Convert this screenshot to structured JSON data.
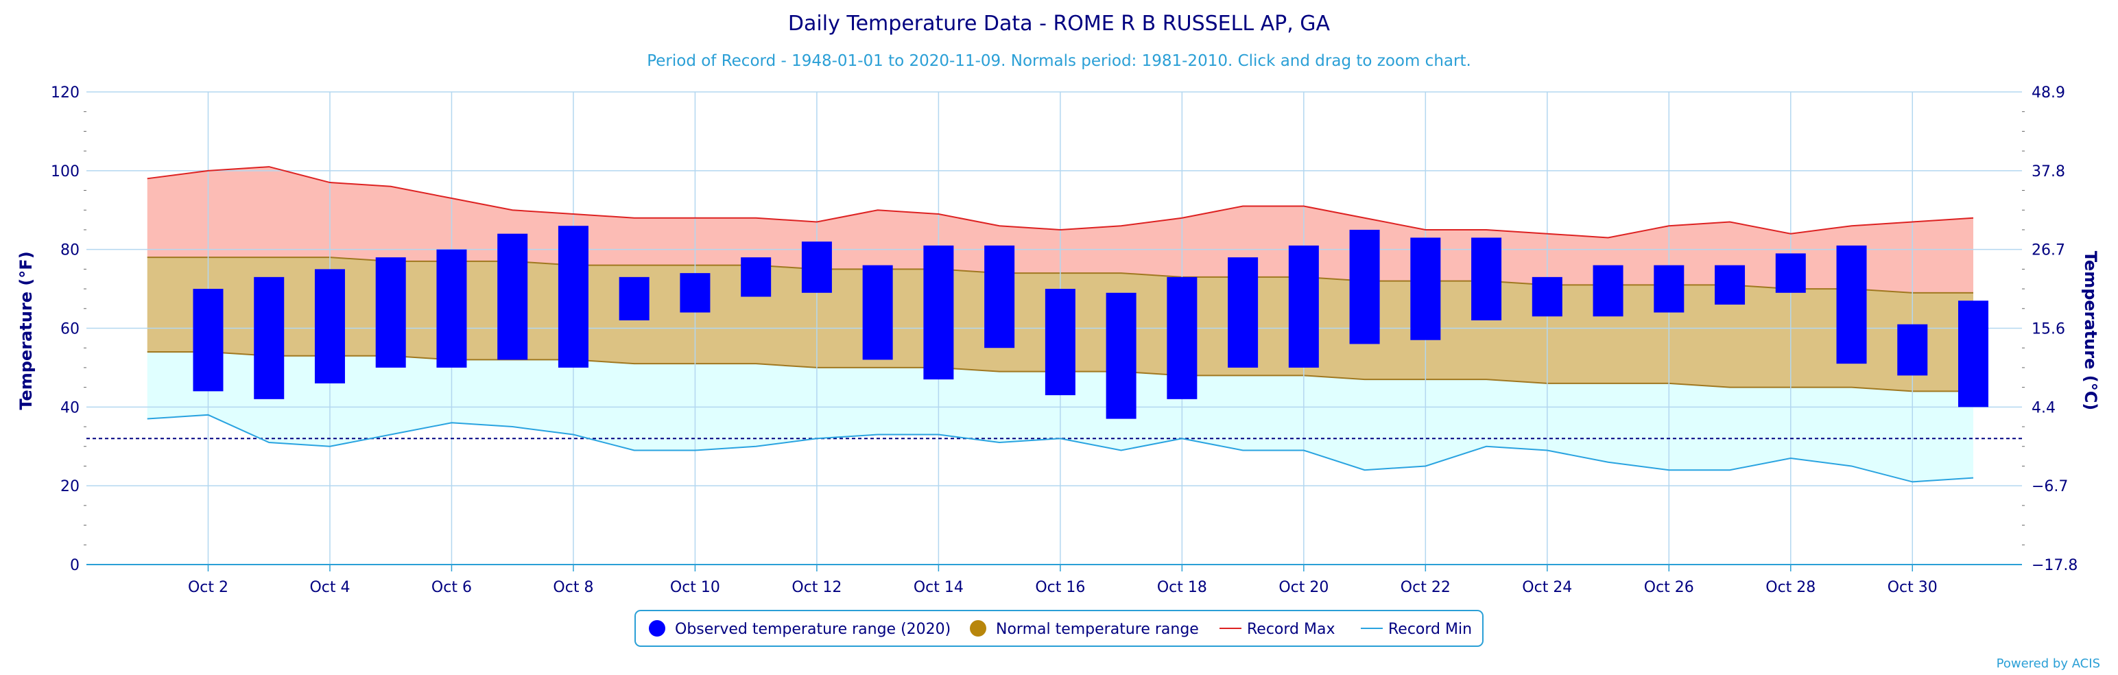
{
  "chart_data": {
    "type": "bar",
    "title": "Daily Temperature Data - ROME R B RUSSELL AP, GA",
    "subtitle": "Period of Record - 1948-01-01 to 2020-11-09. Normals period: 1981-2010. Click and drag to zoom chart.",
    "ylabel_left": "Temperature (°F)",
    "ylabel_right": "Temperature (°C)",
    "ylim": [
      0,
      120
    ],
    "y_ticks_left": [
      "0",
      "20",
      "40",
      "60",
      "80",
      "100",
      "120"
    ],
    "y_ticks_right": [
      "−17.8",
      "−6.7",
      "4.4",
      "15.6",
      "26.7",
      "37.8",
      "48.9"
    ],
    "x_ticks": [
      "Oct 2",
      "Oct 4",
      "Oct 6",
      "Oct 8",
      "Oct 10",
      "Oct 12",
      "Oct 14",
      "Oct 16",
      "Oct 18",
      "Oct 20",
      "Oct 22",
      "Oct 24",
      "Oct 26",
      "Oct 28",
      "Oct 30"
    ],
    "x_tick_days": [
      2,
      4,
      6,
      8,
      10,
      12,
      14,
      16,
      18,
      20,
      22,
      24,
      26,
      28,
      30
    ],
    "days": [
      1,
      2,
      3,
      4,
      5,
      6,
      7,
      8,
      9,
      10,
      11,
      12,
      13,
      14,
      15,
      16,
      17,
      18,
      19,
      20,
      21,
      22,
      23,
      24,
      25,
      26,
      27,
      28,
      29,
      30,
      31
    ],
    "freezing_line": 32,
    "series": [
      {
        "name": "Observed temperature range (2020)",
        "color": "#0000ff",
        "low": [
          null,
          44,
          42,
          46,
          50,
          50,
          52,
          50,
          62,
          64,
          68,
          69,
          52,
          47,
          55,
          43,
          37,
          42,
          50,
          50,
          56,
          57,
          62,
          63,
          63,
          64,
          66,
          69,
          51,
          48,
          40
        ],
        "high": [
          null,
          70,
          73,
          75,
          78,
          80,
          84,
          86,
          73,
          74,
          78,
          82,
          76,
          81,
          81,
          70,
          69,
          73,
          78,
          81,
          85,
          83,
          83,
          73,
          76,
          76,
          76,
          79,
          81,
          61,
          67
        ]
      },
      {
        "name": "Normal temperature range",
        "color": "#b8860b",
        "low": [
          54,
          54,
          53,
          53,
          53,
          52,
          52,
          52,
          51,
          51,
          51,
          50,
          50,
          50,
          49,
          49,
          49,
          48,
          48,
          48,
          47,
          47,
          47,
          46,
          46,
          46,
          45,
          45,
          45,
          44,
          44
        ],
        "high": [
          78,
          78,
          78,
          78,
          77,
          77,
          77,
          76,
          76,
          76,
          76,
          75,
          75,
          75,
          74,
          74,
          74,
          73,
          73,
          73,
          72,
          72,
          72,
          71,
          71,
          71,
          71,
          70,
          70,
          69,
          69
        ]
      },
      {
        "name": "Record Max",
        "color": "#dd2222",
        "values": [
          98,
          100,
          101,
          97,
          96,
          93,
          90,
          89,
          88,
          88,
          88,
          87,
          90,
          89,
          86,
          85,
          86,
          88,
          91,
          91,
          88,
          85,
          85,
          84,
          83,
          86,
          87,
          84,
          86,
          87,
          88
        ]
      },
      {
        "name": "Record Min",
        "color": "#29a3e0",
        "values": [
          37,
          38,
          31,
          30,
          33,
          36,
          35,
          33,
          29,
          29,
          30,
          32,
          33,
          33,
          31,
          32,
          29,
          32,
          29,
          29,
          24,
          25,
          30,
          29,
          26,
          24,
          24,
          27,
          25,
          21,
          22
        ]
      }
    ],
    "legend": [
      {
        "label": "Observed temperature range (2020)",
        "marker": "circle",
        "color": "#0000ff"
      },
      {
        "label": "Normal temperature range",
        "marker": "circle",
        "color": "#b8860b"
      },
      {
        "label": "Record Max",
        "marker": "line",
        "color": "#dd2222"
      },
      {
        "label": "Record Min",
        "marker": "line",
        "color": "#29a3e0"
      }
    ],
    "legend_position": "bottom-center",
    "grid": true,
    "credit": "Powered by ACIS",
    "colors": {
      "record_band": "#fcbcb5",
      "normal_band": "#dcc283",
      "below_band": "#e0ffff",
      "grid": "#b3d7f0",
      "axis_text": "#000080"
    }
  }
}
